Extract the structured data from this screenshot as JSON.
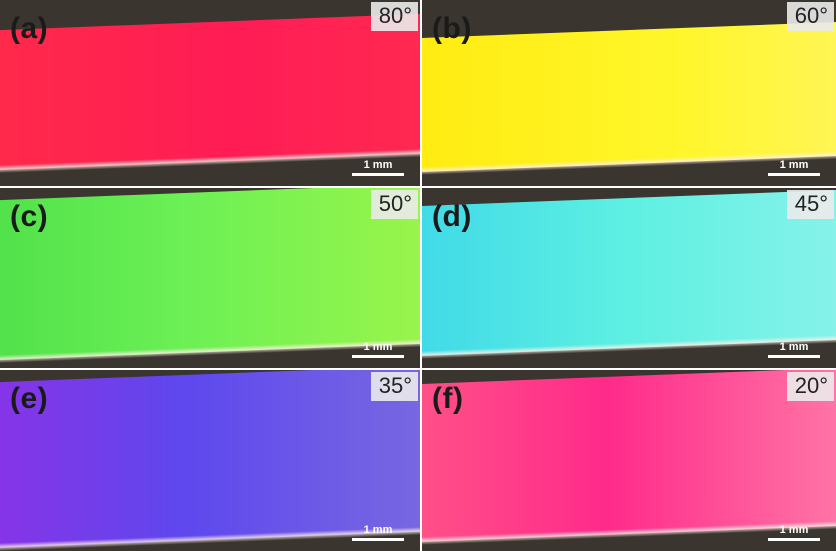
{
  "figure": {
    "panels": [
      {
        "label": "(a)",
        "angle": "80°",
        "scale": "1 mm",
        "color": "#ff1f4a"
      },
      {
        "label": "(b)",
        "angle": "60°",
        "scale": "1 mm",
        "color": "#ffee18"
      },
      {
        "label": "(c)",
        "angle": "50°",
        "scale": "1 mm",
        "color": "#58ee3a"
      },
      {
        "label": "(d)",
        "angle": "45°",
        "scale": "1 mm",
        "color": "#4fe6e0"
      },
      {
        "label": "(e)",
        "angle": "35°",
        "scale": "1 mm",
        "color": "#6a46e6"
      },
      {
        "label": "(f)",
        "angle": "20°",
        "scale": "1 mm",
        "color": "#ff4e86"
      }
    ]
  }
}
